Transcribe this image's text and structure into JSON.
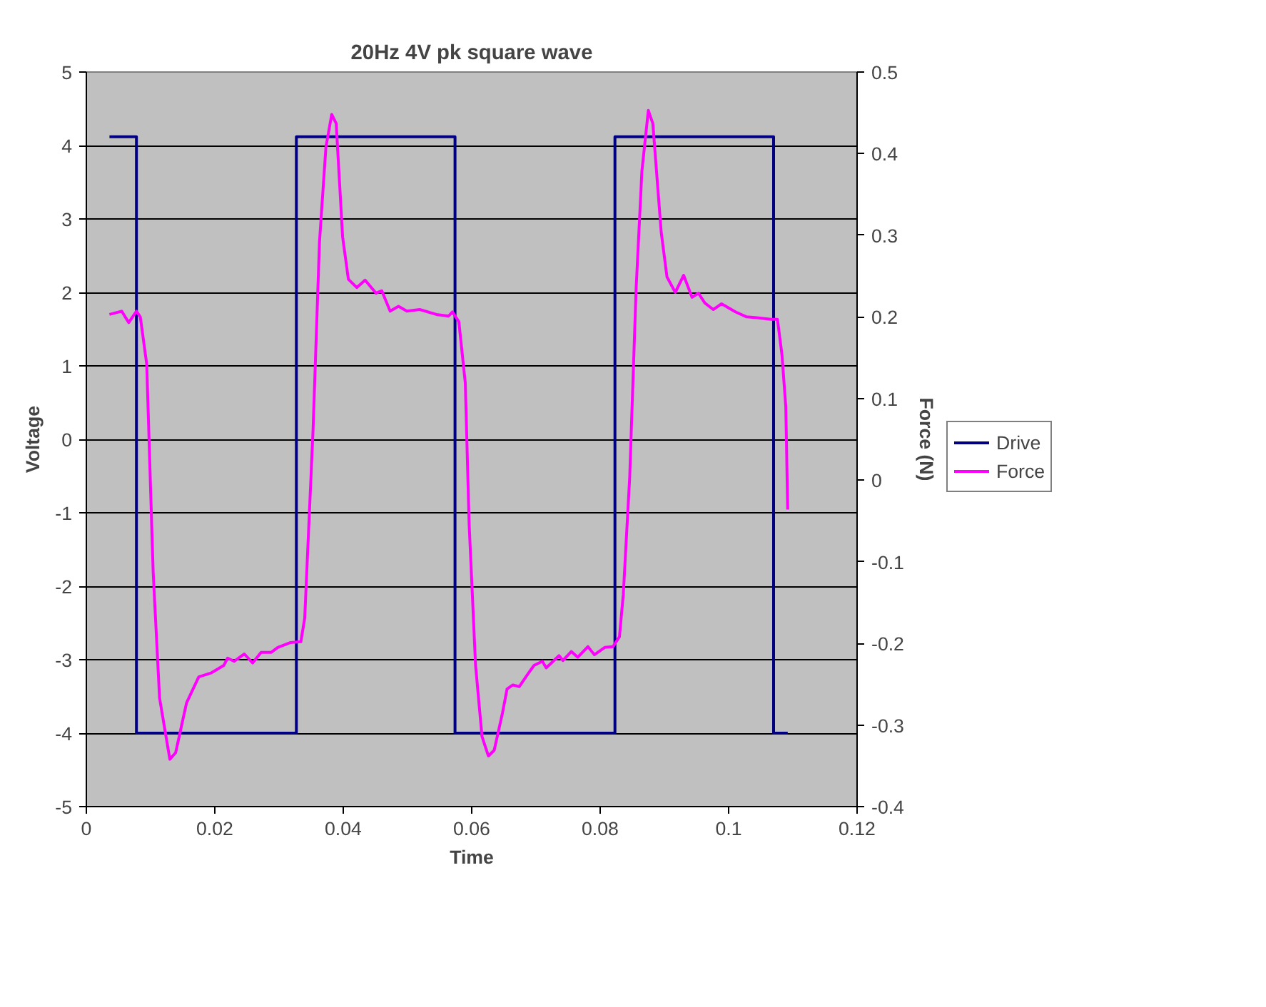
{
  "chart_data": {
    "type": "line",
    "title": "20Hz 4V pk square wave",
    "xlabel": "Time",
    "ylabel": "Voltage",
    "y2label": "Force (N)",
    "xlim": [
      0,
      0.12
    ],
    "xticks": [
      0,
      0.02,
      0.04,
      0.06,
      0.08,
      0.1,
      0.12
    ],
    "ylim": [
      -5,
      5
    ],
    "yticks": [
      -5,
      -4,
      -3,
      -2,
      -1,
      0,
      1,
      2,
      3,
      4,
      5
    ],
    "y2lim": [
      -0.4,
      0.5
    ],
    "y2ticks": [
      -0.4,
      -0.3,
      -0.2,
      -0.1,
      0,
      0.1,
      0.2,
      0.3,
      0.4,
      0.5
    ],
    "grid": "y",
    "legend": "right",
    "series": [
      {
        "name": "Drive",
        "color": "#000080",
        "x": [
          0.0036,
          0.0078,
          0.0078,
          0.0327,
          0.0327,
          0.0574,
          0.0574,
          0.0823,
          0.0823,
          0.107,
          0.107,
          0.1092
        ],
        "values": [
          4.12,
          4.12,
          -4.0,
          -4.0,
          4.12,
          4.12,
          -4.0,
          -4.0,
          4.12,
          4.12,
          -4.0,
          -4.0
        ]
      },
      {
        "name": "Force",
        "color": "#ff00ff",
        "axis": "y2",
        "x": [
          0.0036,
          0.0055,
          0.0066,
          0.0078,
          0.0084,
          0.0094,
          0.0104,
          0.0114,
          0.013,
          0.0139,
          0.0156,
          0.0175,
          0.0195,
          0.0214,
          0.022,
          0.023,
          0.0246,
          0.0259,
          0.0272,
          0.0288,
          0.0298,
          0.0318,
          0.0334,
          0.034,
          0.0353,
          0.0363,
          0.0373,
          0.0382,
          0.0389,
          0.0399,
          0.0408,
          0.0421,
          0.0434,
          0.0451,
          0.046,
          0.0473,
          0.0486,
          0.0499,
          0.0519,
          0.0545,
          0.0564,
          0.057,
          0.058,
          0.059,
          0.0596,
          0.0606,
          0.0616,
          0.0626,
          0.0635,
          0.0648,
          0.0655,
          0.0664,
          0.0674,
          0.0687,
          0.0697,
          0.071,
          0.0716,
          0.0736,
          0.0742,
          0.0755,
          0.0765,
          0.0781,
          0.0791,
          0.0807,
          0.082,
          0.083,
          0.0836,
          0.0846,
          0.0856,
          0.0865,
          0.0875,
          0.0882,
          0.0895,
          0.0904,
          0.0917,
          0.093,
          0.0943,
          0.0953,
          0.0963,
          0.0976,
          0.0989,
          0.1011,
          0.1028,
          0.1044,
          0.1066,
          0.1076,
          0.1083,
          0.1089,
          0.1092
        ],
        "values": [
          0.203,
          0.207,
          0.193,
          0.207,
          0.2,
          0.142,
          -0.112,
          -0.267,
          -0.342,
          -0.334,
          -0.273,
          -0.241,
          -0.236,
          -0.227,
          -0.218,
          -0.222,
          -0.213,
          -0.224,
          -0.211,
          -0.211,
          -0.205,
          -0.199,
          -0.198,
          -0.169,
          0.062,
          0.292,
          0.408,
          0.448,
          0.437,
          0.298,
          0.246,
          0.236,
          0.245,
          0.229,
          0.232,
          0.207,
          0.213,
          0.207,
          0.209,
          0.203,
          0.201,
          0.206,
          0.194,
          0.119,
          -0.054,
          -0.227,
          -0.314,
          -0.338,
          -0.331,
          -0.285,
          -0.256,
          -0.251,
          -0.253,
          -0.238,
          -0.227,
          -0.222,
          -0.23,
          -0.215,
          -0.221,
          -0.21,
          -0.217,
          -0.204,
          -0.214,
          -0.205,
          -0.204,
          -0.192,
          -0.14,
          0.004,
          0.235,
          0.379,
          0.453,
          0.437,
          0.304,
          0.249,
          0.23,
          0.251,
          0.224,
          0.229,
          0.217,
          0.209,
          0.216,
          0.206,
          0.2,
          0.199,
          0.197,
          0.197,
          0.154,
          0.09,
          -0.036
        ]
      }
    ]
  }
}
